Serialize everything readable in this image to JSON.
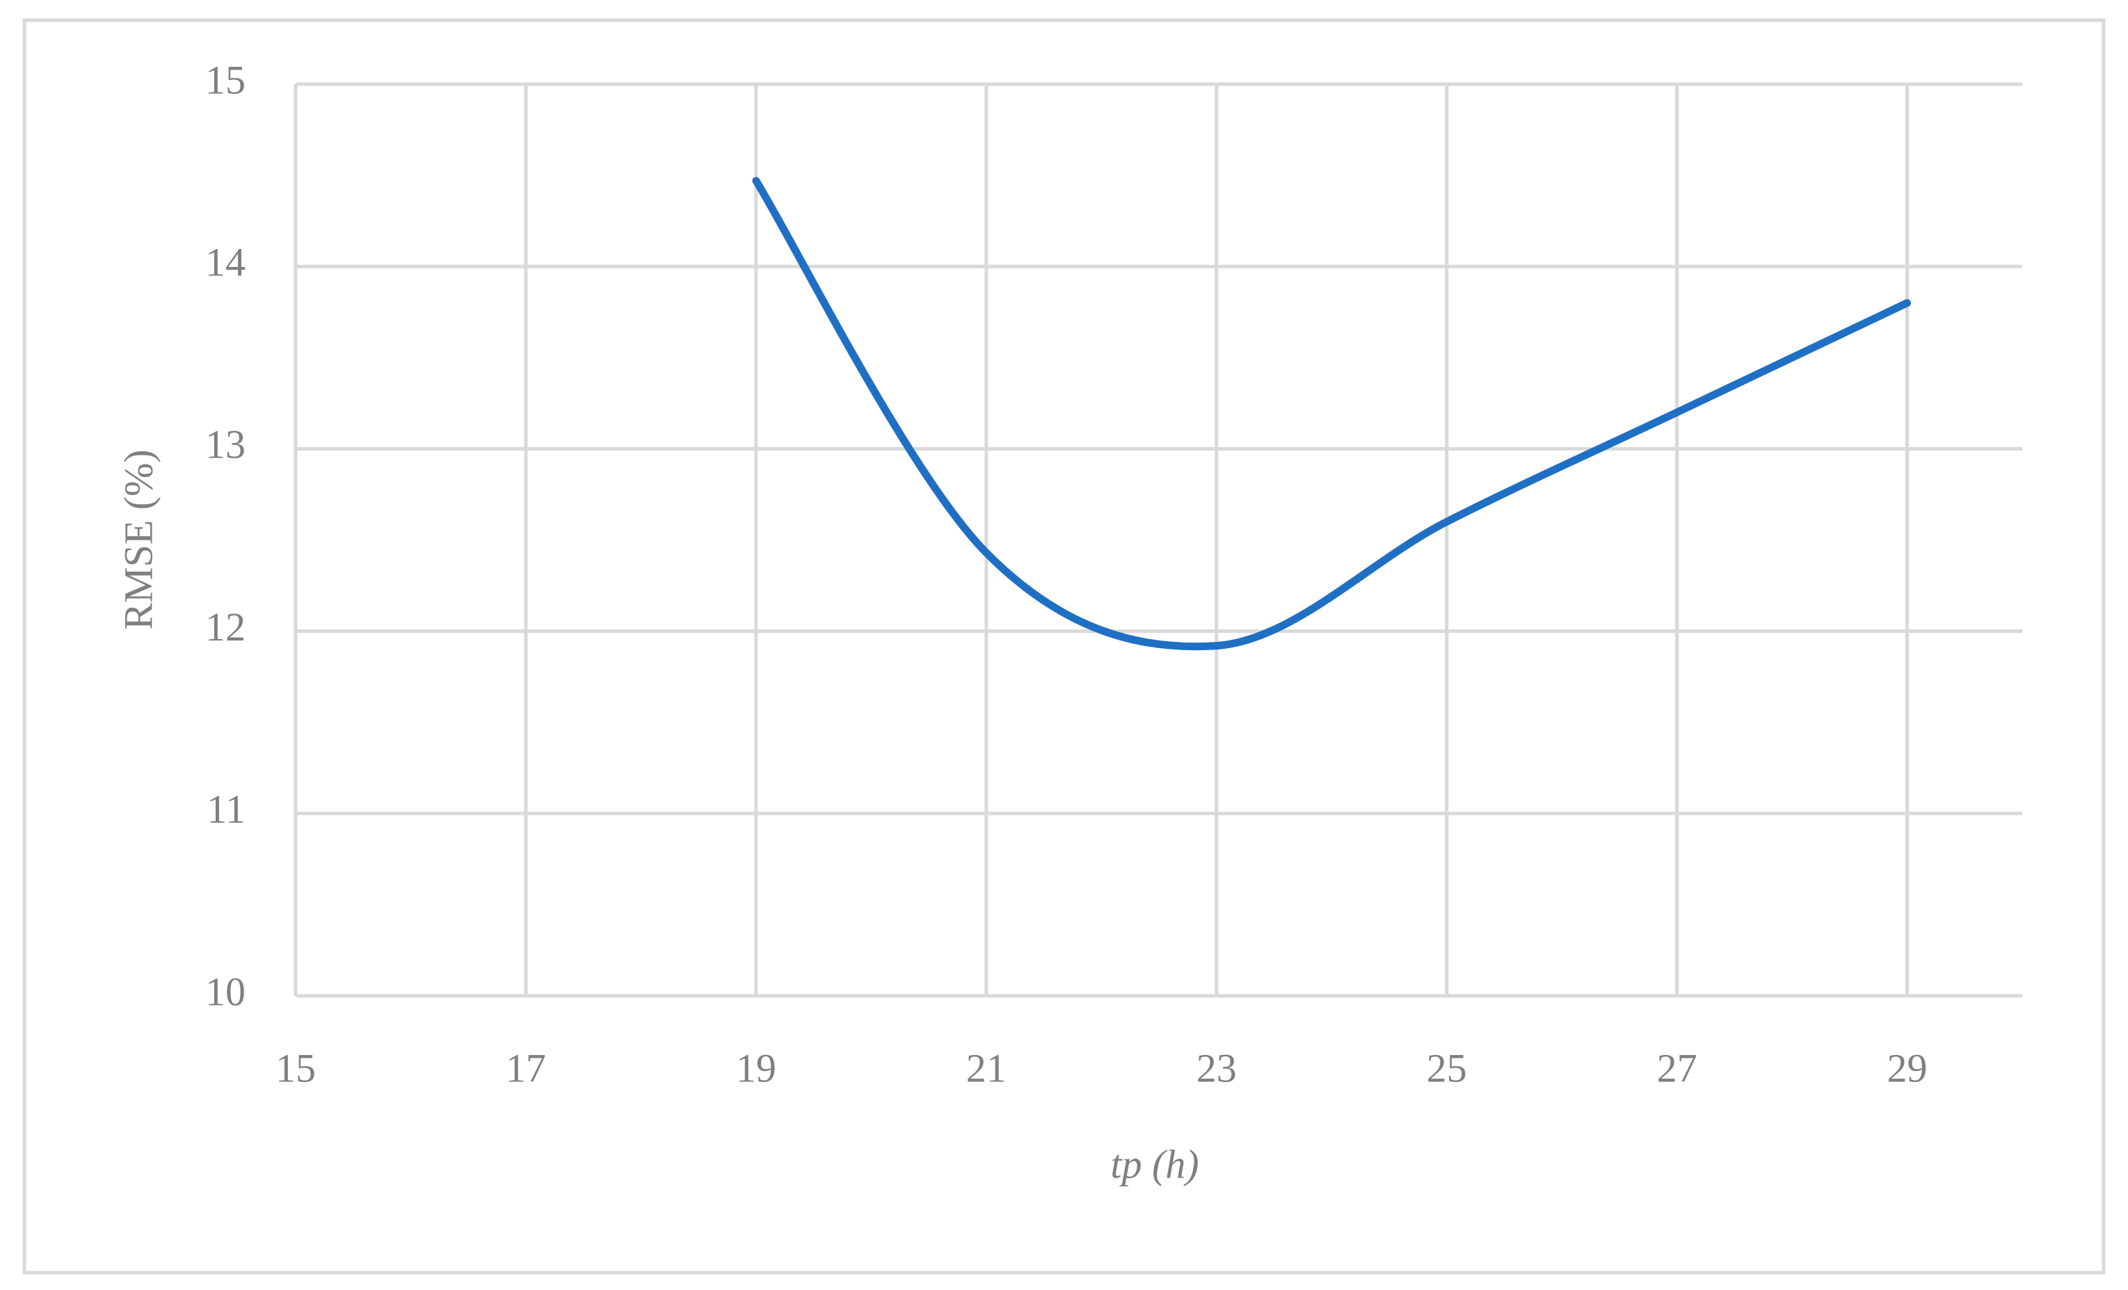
{
  "chart_data": {
    "type": "line",
    "x_label": "tp (h)",
    "y_label": "RMSE (%)",
    "x": [
      19,
      21,
      23,
      25,
      27,
      29
    ],
    "series": [
      {
        "name": "RMSE",
        "color": "#1f6fc4",
        "values": [
          14.47,
          12.43,
          11.92,
          12.6,
          13.2,
          13.8
        ]
      }
    ],
    "xlim": [
      15,
      30
    ],
    "xticks": [
      15,
      17,
      19,
      21,
      23,
      25,
      27,
      29
    ],
    "ylim": [
      10,
      15
    ],
    "yticks": [
      10,
      11,
      12,
      13,
      14,
      15
    ],
    "grid": true,
    "smooth": true
  }
}
